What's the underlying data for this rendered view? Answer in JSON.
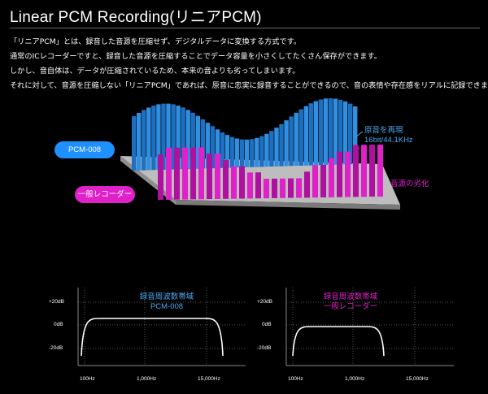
{
  "page": {
    "title": "Linear PCM Recording(リニアPCM)",
    "paragraphs": [
      "「リニアPCM」とは、録音した音源を圧縮せず、デジタルデータに変換する方式です。",
      "通常のICレコーダーですと、録音した音源を圧縮することでデータ容量を小さくしてたくさん保存ができます。",
      "しかし、音自体は、データが圧縮されているため、本来の音よりも劣ってしまいます。",
      "それに対して、音源を圧縮しない「リニアPCM」であれば、原音に忠実に録音することができるので、音の表情や存在感をリアルに記録できます。"
    ]
  },
  "illustration": {
    "pcm_label": "PCM-008",
    "recorder_label": "一般レコーダー",
    "blue_label_line1": "原音を再現",
    "blue_label_line2": "16bit/44.1KHz",
    "pink_label": "音源の劣化",
    "colors": {
      "blue": "#2f8fe0",
      "pink": "#e020c8",
      "pill_blue": "#1e90ff",
      "pill_pink": "#e020c8"
    }
  },
  "charts": [
    {
      "title_line1": "録音周波数帯域",
      "title_line2": "PCM-008",
      "color": "#2f8fe0",
      "y_ticks": [
        "+20dB",
        "0dB",
        "-20dB"
      ],
      "x_ticks": [
        "100Hz",
        "1,000Hz",
        "15,000Hz"
      ]
    },
    {
      "title_line1": "録音周波数帯域",
      "title_line2": "一般レコーダー",
      "color": "#e020c8",
      "y_ticks": [
        "+20dB",
        "0dB",
        "-20dB"
      ],
      "x_ticks": [
        "100Hz",
        "1,000Hz",
        "15,000Hz"
      ]
    }
  ]
}
